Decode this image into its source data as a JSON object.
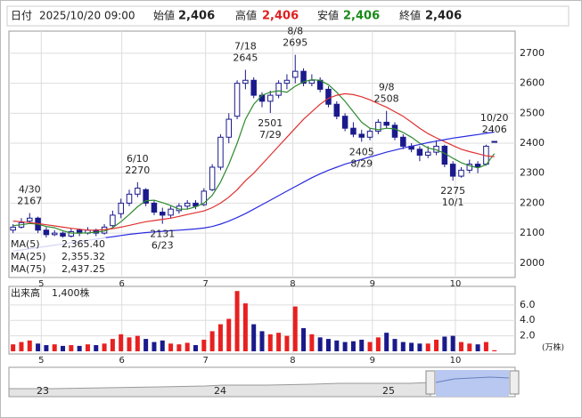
{
  "header": {
    "date_label": "日付",
    "date": "2025/10/20 09:00",
    "open_label": "始値",
    "open": "2,406",
    "high_label": "高値",
    "high": "2,406",
    "low_label": "安値",
    "low": "2,406",
    "close_label": "終値",
    "close": "2,406"
  },
  "chart_data": {
    "type": "candlestick",
    "open": [
      2110,
      2120,
      2140,
      2150,
      2110,
      2095,
      2100,
      2090,
      2110,
      2100,
      2110,
      2100,
      2125,
      2165,
      2200,
      2230,
      2245,
      2200,
      2170,
      2160,
      2175,
      2190,
      2200,
      2195,
      2245,
      2320,
      2420,
      2490,
      2600,
      2610,
      2560,
      2540,
      2560,
      2600,
      2620,
      2640,
      2600,
      2610,
      2580,
      2530,
      2490,
      2450,
      2430,
      2420,
      2440,
      2470,
      2460,
      2420,
      2390,
      2380,
      2360,
      2370,
      2390,
      2330,
      2290,
      2310,
      2330,
      2330,
      2406
    ],
    "high": [
      2130,
      2150,
      2167,
      2155,
      2120,
      2110,
      2105,
      2115,
      2115,
      2120,
      2115,
      2130,
      2175,
      2215,
      2245,
      2270,
      2250,
      2210,
      2185,
      2190,
      2200,
      2210,
      2210,
      2250,
      2330,
      2430,
      2500,
      2610,
      2645,
      2620,
      2570,
      2575,
      2610,
      2630,
      2695,
      2650,
      2630,
      2620,
      2590,
      2540,
      2500,
      2470,
      2445,
      2450,
      2480,
      2508,
      2470,
      2430,
      2400,
      2390,
      2390,
      2410,
      2395,
      2340,
      2320,
      2345,
      2340,
      2395,
      2406
    ],
    "low": [
      2100,
      2115,
      2130,
      2100,
      2085,
      2090,
      2080,
      2085,
      2090,
      2095,
      2090,
      2095,
      2120,
      2150,
      2190,
      2220,
      2190,
      2160,
      2131,
      2150,
      2165,
      2180,
      2180,
      2190,
      2240,
      2310,
      2400,
      2480,
      2580,
      2550,
      2520,
      2501,
      2550,
      2580,
      2600,
      2590,
      2590,
      2570,
      2520,
      2480,
      2440,
      2420,
      2405,
      2410,
      2430,
      2450,
      2410,
      2380,
      2370,
      2340,
      2350,
      2360,
      2320,
      2275,
      2285,
      2300,
      2300,
      2325,
      2406
    ],
    "close": [
      2120,
      2135,
      2150,
      2110,
      2095,
      2100,
      2090,
      2105,
      2100,
      2110,
      2100,
      2120,
      2160,
      2200,
      2230,
      2250,
      2200,
      2170,
      2160,
      2180,
      2190,
      2200,
      2190,
      2240,
      2320,
      2420,
      2480,
      2600,
      2610,
      2560,
      2540,
      2560,
      2600,
      2610,
      2640,
      2600,
      2610,
      2580,
      2530,
      2490,
      2450,
      2430,
      2420,
      2440,
      2470,
      2460,
      2420,
      2390,
      2380,
      2360,
      2370,
      2390,
      2330,
      2290,
      2310,
      2330,
      2320,
      2390,
      2406
    ],
    "ylim": [
      1952,
      2774
    ],
    "yticks": [
      2000,
      2100,
      2200,
      2300,
      2400,
      2500,
      2600,
      2700
    ],
    "xlim": [
      -0.5,
      60.5
    ],
    "xticks": [
      {
        "value": 3.4,
        "label": "5"
      },
      {
        "value": 13.1,
        "label": "6"
      },
      {
        "value": 23.2,
        "label": "7"
      },
      {
        "value": 33.7,
        "label": "8"
      },
      {
        "value": 43.3,
        "label": "9"
      },
      {
        "value": 53.3,
        "label": "10"
      }
    ],
    "up_color": "#ffffff",
    "down_color": "#1a1a8c",
    "ma": [
      {
        "name": "MA(5)",
        "color": "#2e8b2e",
        "legend_value": "2,365.40",
        "values": [
          2125,
          2128,
          2132,
          2130,
          2122,
          2118,
          2108,
          2100,
          2100,
          2101,
          2103,
          2107,
          2118,
          2138,
          2162,
          2188,
          2208,
          2210,
          2202,
          2192,
          2180,
          2180,
          2188,
          2200,
          2226,
          2270,
          2330,
          2400,
          2480,
          2530,
          2560,
          2570,
          2575,
          2570,
          2590,
          2605,
          2612,
          2610,
          2595,
          2570,
          2540,
          2505,
          2470,
          2450,
          2445,
          2450,
          2448,
          2436,
          2420,
          2400,
          2384,
          2378,
          2366,
          2350,
          2335,
          2325,
          2318,
          2328,
          2365.4
        ]
      },
      {
        "name": "MA(25)",
        "color": "#e03030",
        "legend_value": "2,355.32",
        "values": [
          2140,
          2138,
          2135,
          2132,
          2128,
          2124,
          2120,
          2116,
          2113,
          2110,
          2110,
          2112,
          2115,
          2120,
          2126,
          2132,
          2138,
          2142,
          2146,
          2150,
          2156,
          2162,
          2168,
          2174,
          2185,
          2200,
          2220,
          2245,
          2275,
          2300,
          2330,
          2360,
          2390,
          2420,
          2450,
          2480,
          2505,
          2530,
          2550,
          2560,
          2565,
          2562,
          2555,
          2545,
          2532,
          2520,
          2505,
          2490,
          2470,
          2450,
          2432,
          2418,
          2405,
          2392,
          2380,
          2372,
          2365,
          2358,
          2355.32
        ]
      },
      {
        "name": "MA(75)",
        "color": "#2a2ae0",
        "legend_value": "2,437.25",
        "values": [
          2040,
          2044,
          2048,
          2052,
          2056,
          2060,
          2064,
          2068,
          2072,
          2076,
          2080,
          2084,
          2088,
          2092,
          2096,
          2099,
          2102,
          2104,
          2106,
          2108,
          2110,
          2112,
          2114,
          2117,
          2122,
          2130,
          2140,
          2152,
          2165,
          2180,
          2195,
          2210,
          2225,
          2240,
          2255,
          2270,
          2285,
          2298,
          2310,
          2320,
          2330,
          2338,
          2346,
          2354,
          2362,
          2370,
          2377,
          2384,
          2390,
          2396,
          2402,
          2407,
          2412,
          2417,
          2421,
          2425,
          2429,
          2433,
          2437.25
        ]
      }
    ],
    "annotations": [
      {
        "date": "4/30",
        "value": 2167
      },
      {
        "date": "6/10",
        "value": 2270
      },
      {
        "date": "6/23",
        "value": 2131
      },
      {
        "date": "7/18",
        "value": 2645
      },
      {
        "date": "7/29",
        "value": 2501
      },
      {
        "date": "8/8",
        "value": 2695
      },
      {
        "date": "8/29",
        "value": 2405
      },
      {
        "date": "9/8",
        "value": 2508
      },
      {
        "date": "10/1",
        "value": 2275
      },
      {
        "date": "10/20",
        "value": 2406
      }
    ],
    "volume": {
      "title": "出来高",
      "latest": "1,400株",
      "unit": "(万株)",
      "up_color": "#e82020",
      "down_color": "#1a1a8c",
      "values": [
        0.9,
        1.2,
        1.4,
        1.0,
        0.8,
        0.9,
        0.7,
        0.8,
        0.7,
        0.9,
        0.8,
        1.0,
        1.6,
        2.2,
        1.8,
        2.0,
        1.6,
        1.2,
        1.4,
        1.0,
        0.9,
        1.1,
        0.8,
        1.5,
        2.6,
        3.5,
        4.2,
        7.8,
        6.2,
        3.5,
        2.6,
        2.2,
        2.4,
        2.0,
        5.8,
        3.0,
        2.2,
        1.8,
        1.6,
        1.4,
        1.2,
        1.3,
        1.5,
        1.2,
        1.8,
        2.4,
        1.6,
        1.2,
        1.1,
        1.0,
        1.0,
        1.5,
        1.9,
        2.0,
        1.2,
        1.0,
        0.9,
        1.2,
        0.14
      ],
      "ylim": [
        0,
        8.4
      ],
      "yticks": [
        {
          "value": 2,
          "label": "2.0"
        },
        {
          "value": 4,
          "label": "4.0"
        },
        {
          "value": 6,
          "label": "6.0"
        }
      ]
    },
    "navigator": {
      "labels": [
        "23",
        "24",
        "25"
      ]
    }
  }
}
